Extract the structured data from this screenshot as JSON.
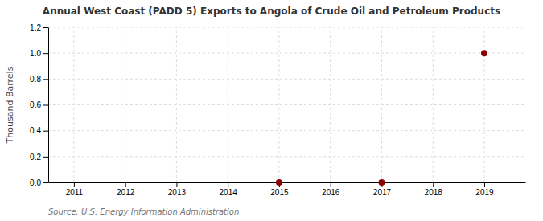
{
  "chart_data": {
    "type": "scatter",
    "title": "Annual West Coast (PADD 5) Exports to Angola of Crude Oil and Petroleum Products",
    "ylabel": "Thousand Barrels",
    "source": "Source: U.S. Energy Information Administration",
    "x": [
      2015,
      2017,
      2019
    ],
    "values": [
      0.0,
      0.0,
      1.0
    ],
    "color": "#8b0000",
    "xlim": [
      2010.5,
      2019.8
    ],
    "ylim": [
      0.0,
      1.2
    ],
    "xticks": [
      2011,
      2012,
      2013,
      2014,
      2015,
      2016,
      2017,
      2018,
      2019
    ],
    "yticks": [
      {
        "value": 0.0,
        "label": "0.0"
      },
      0.2,
      0.4,
      0.6,
      0.8,
      {
        "value": 1.0,
        "label": "1.0"
      },
      1.2
    ],
    "grid": true
  }
}
